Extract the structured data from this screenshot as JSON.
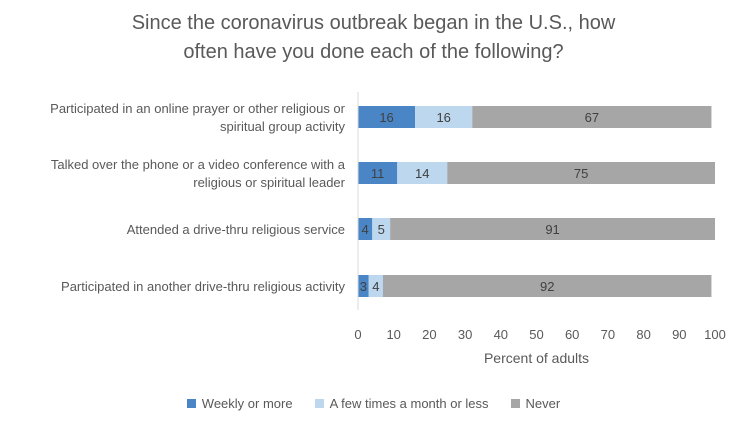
{
  "chart_data": {
    "type": "bar",
    "orientation": "horizontal",
    "stacked": true,
    "title_lines": [
      "Since the coronavirus outbreak began in the U.S., how",
      "often have you done each of the following?"
    ],
    "categories": [
      [
        "Participated in an online prayer or other religious or",
        "spiritual group activity"
      ],
      [
        "Talked over the phone or a video conference with a",
        "religious or spiritual leader"
      ],
      [
        "Attended a drive-thru religious service"
      ],
      [
        "Participated in another drive-thru religious activity"
      ]
    ],
    "series": [
      {
        "name": "Weekly or more",
        "color": "#4a86c6",
        "values": [
          16,
          11,
          4,
          3
        ]
      },
      {
        "name": "A few times a month or less",
        "color": "#bdd7ee",
        "values": [
          16,
          14,
          5,
          4
        ]
      },
      {
        "name": "Never",
        "color": "#a6a6a6",
        "values": [
          67,
          75,
          91,
          92
        ]
      }
    ],
    "xlabel": "Percent of adults",
    "xlim": [
      0,
      100
    ],
    "xticks": [
      0,
      10,
      20,
      30,
      40,
      50,
      60,
      70,
      80,
      90,
      100
    ],
    "legend_position": "bottom",
    "grid": false
  }
}
